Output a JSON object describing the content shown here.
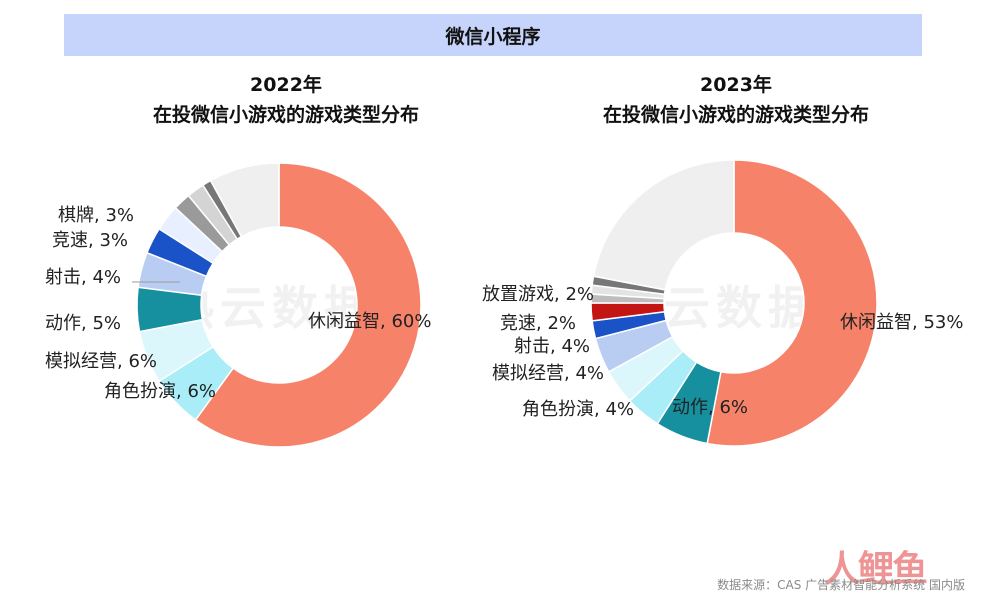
{
  "banner": {
    "title": "微信小程序"
  },
  "charts": [
    {
      "year": "2022年",
      "subtitle": "在投微信小游戏的游戏类型分布"
    },
    {
      "year": "2023年",
      "subtitle": "在投微信小游戏的游戏类型分布"
    }
  ],
  "watermark": "热云数据",
  "source": "数据来源：CAS 广告素材智能分析系统 国内版",
  "logo": "人鲤鱼",
  "chart_data": [
    {
      "type": "pie",
      "title": "2022年 在投微信小游戏的游戏类型分布",
      "slices": [
        {
          "label": "休闲益智",
          "value": 60,
          "display": "休闲益智, 60%",
          "color": "#f7826a"
        },
        {
          "label": "角色扮演",
          "value": 6,
          "display": "角色扮演, 6%",
          "color": "#a8edf7"
        },
        {
          "label": "模拟经营",
          "value": 6,
          "display": "模拟经营, 6%",
          "color": "#dcf7fb"
        },
        {
          "label": "动作",
          "value": 5,
          "display": "动作, 5%",
          "color": "#16909e"
        },
        {
          "label": "射击",
          "value": 4,
          "display": "射击, 4%",
          "color": "#b9cdf3"
        },
        {
          "label": "竞速",
          "value": 3,
          "display": "竞速, 3%",
          "color": "#1a52c8"
        },
        {
          "label": "棋牌",
          "value": 3,
          "display": "棋牌, 3%",
          "color": "#e8f0ff"
        },
        {
          "label": "",
          "value": 2,
          "display": "",
          "color": "#9a9a9a"
        },
        {
          "label": "",
          "value": 2,
          "display": "",
          "color": "#d4d4d4"
        },
        {
          "label": "",
          "value": 1,
          "display": "",
          "color": "#777777"
        },
        {
          "label": "",
          "value": 8,
          "display": "",
          "color": "#efefef"
        }
      ]
    },
    {
      "type": "pie",
      "title": "2023年 在投微信小游戏的游戏类型分布",
      "slices": [
        {
          "label": "休闲益智",
          "value": 53,
          "display": "休闲益智, 53%",
          "color": "#f7826a"
        },
        {
          "label": "动作",
          "value": 6,
          "display": "动作, 6%",
          "color": "#16909e"
        },
        {
          "label": "角色扮演",
          "value": 4,
          "display": "角色扮演, 4%",
          "color": "#a8edf7"
        },
        {
          "label": "模拟经营",
          "value": 4,
          "display": "模拟经营, 4%",
          "color": "#dcf7fb"
        },
        {
          "label": "射击",
          "value": 4,
          "display": "射击, 4%",
          "color": "#b9cdf3"
        },
        {
          "label": "竞速",
          "value": 2,
          "display": "竞速, 2%",
          "color": "#1a52c8"
        },
        {
          "label": "放置游戏",
          "value": 2,
          "display": "放置游戏, 2%",
          "color": "#c41515"
        },
        {
          "label": "",
          "value": 1,
          "display": "",
          "color": "#bdbdbd"
        },
        {
          "label": "",
          "value": 1,
          "display": "",
          "color": "#e3e3e3"
        },
        {
          "label": "",
          "value": 1,
          "display": "",
          "color": "#777777"
        },
        {
          "label": "",
          "value": 22,
          "display": "",
          "color": "#efefef"
        }
      ]
    }
  ]
}
